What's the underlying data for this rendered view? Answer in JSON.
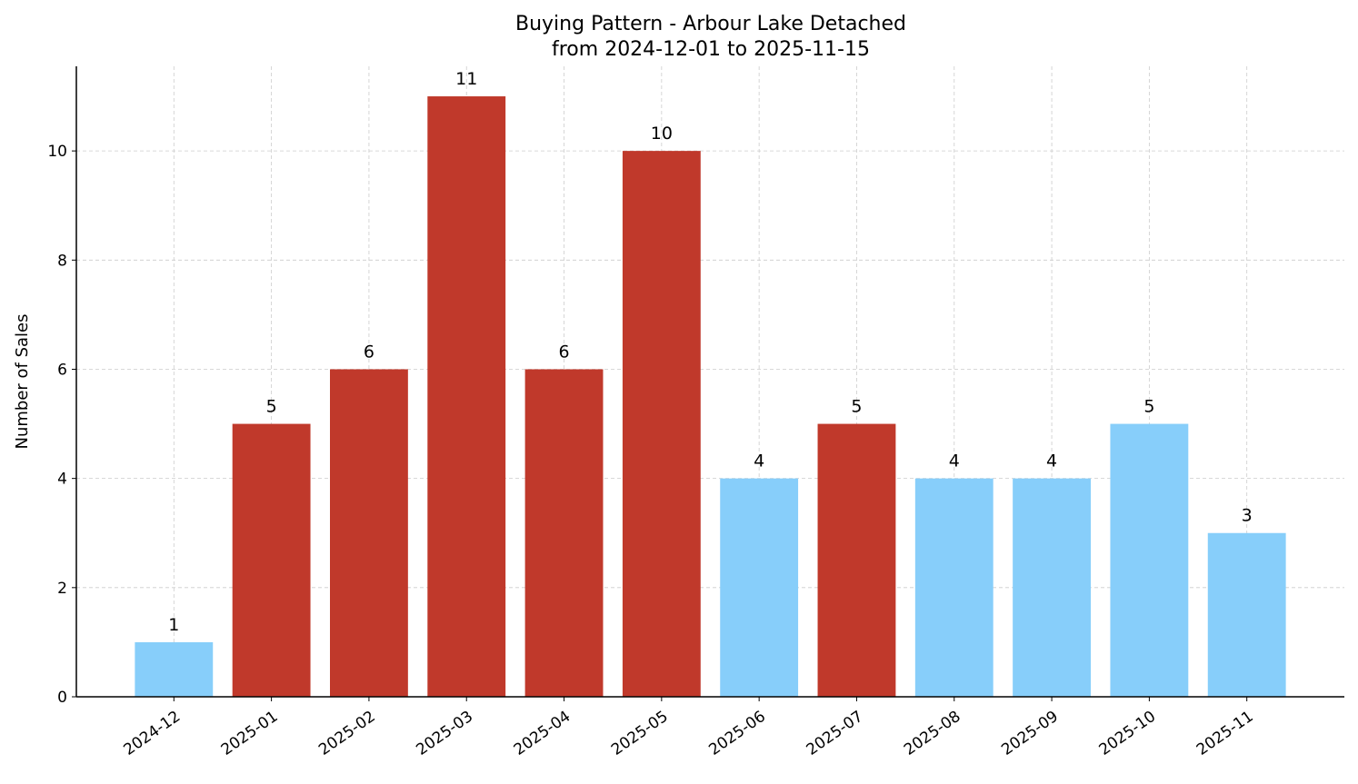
{
  "chart_data": {
    "type": "bar",
    "title": "Buying Pattern - Arbour Lake Detached",
    "subtitle": "from 2024-12-01 to 2025-11-15",
    "xlabel": "",
    "ylabel": "Number of Sales",
    "categories": [
      "2024-12",
      "2025-01",
      "2025-02",
      "2025-03",
      "2025-04",
      "2025-05",
      "2025-06",
      "2025-07",
      "2025-08",
      "2025-09",
      "2025-10",
      "2025-11"
    ],
    "values": [
      1,
      5,
      6,
      11,
      6,
      10,
      4,
      5,
      4,
      4,
      5,
      3
    ],
    "bar_colors": [
      "#87cefa",
      "#c0392b",
      "#c0392b",
      "#c0392b",
      "#c0392b",
      "#c0392b",
      "#87cefa",
      "#c0392b",
      "#87cefa",
      "#87cefa",
      "#87cefa",
      "#87cefa"
    ],
    "yticks": [
      0,
      2,
      4,
      6,
      8,
      10
    ],
    "ylim": [
      0,
      11.55
    ],
    "grid": true,
    "data_labels": true
  }
}
